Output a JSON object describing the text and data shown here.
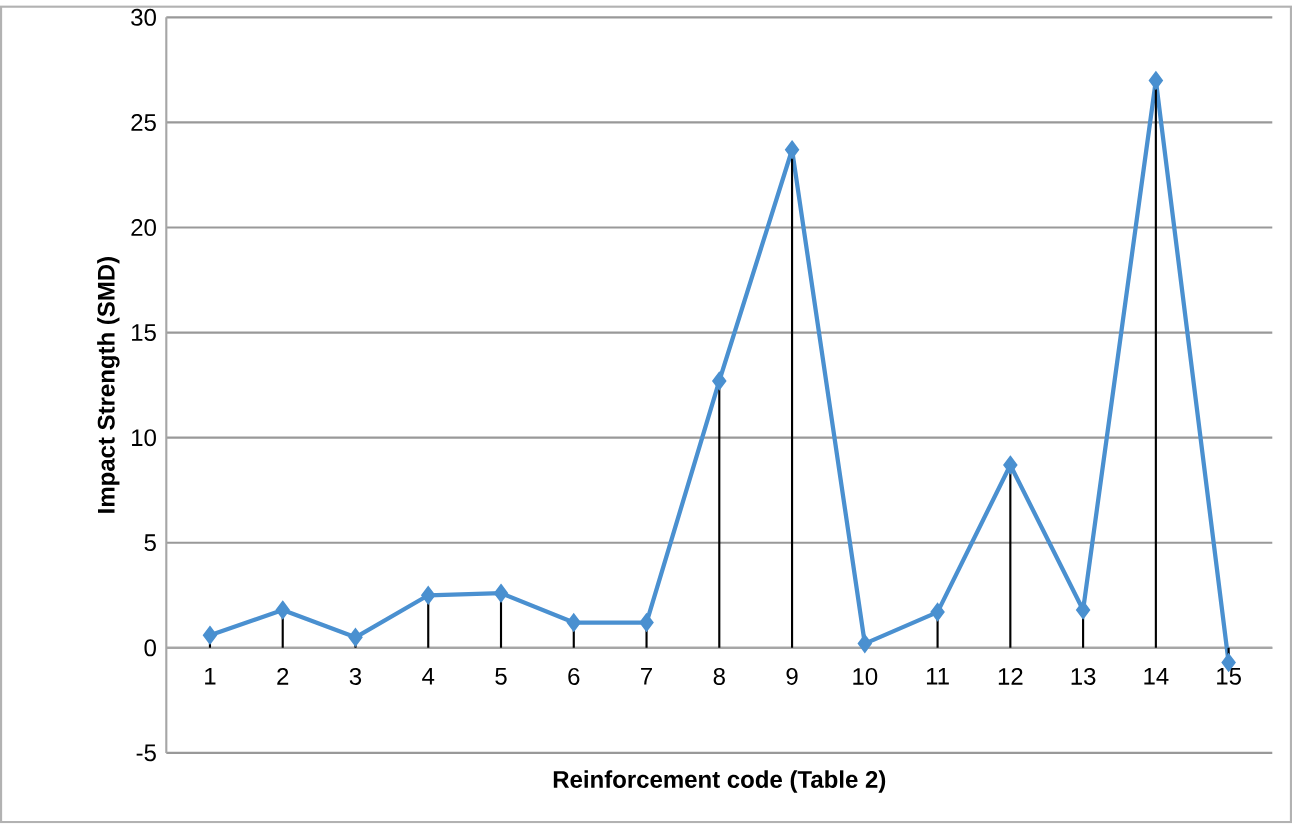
{
  "chart_data": {
    "type": "line",
    "xlabel": "Reinforcement code (Table 2)",
    "ylabel": "Impact Strength (SMD)",
    "categories": [
      "1",
      "2",
      "3",
      "4",
      "5",
      "6",
      "7",
      "8",
      "9",
      "10",
      "11",
      "12",
      "13",
      "14",
      "15"
    ],
    "series": [
      {
        "color": "#4a90d0",
        "marker": "none",
        "values": [
          0.6,
          1.8,
          0.5,
          2.5,
          2.6,
          1.2,
          1.2,
          12.7,
          23.7,
          0.2,
          1.7,
          8.7,
          1.8,
          27.0,
          -0.7
        ]
      },
      {
        "type": "lollipop",
        "color": "#4a90d0",
        "values": [
          0.6,
          1.8,
          0.5,
          2.5,
          2.6,
          1.2,
          1.2,
          12.7,
          23.7,
          0.2,
          1.7,
          8.7,
          1.8,
          27.0,
          -0.7
        ]
      }
    ],
    "ylim": [
      -5,
      30
    ],
    "yticks": [
      -5,
      0,
      5,
      10,
      15,
      20,
      25,
      30
    ],
    "grid": "y",
    "marker": "diamond",
    "line_style": "solid"
  }
}
